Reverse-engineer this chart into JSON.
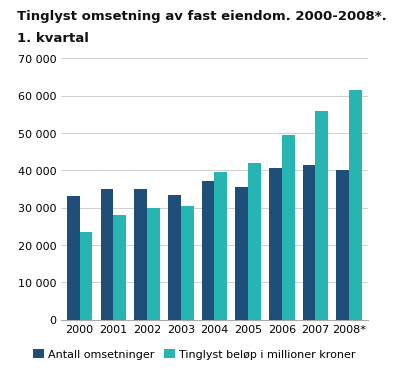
{
  "title_line1": "Tinglyst omsetning av fast eiendom. 2000-2008*.",
  "title_line2": "1. kvartal",
  "years": [
    "2000",
    "2001",
    "2002",
    "2003",
    "2004",
    "2005",
    "2006",
    "2007",
    "2008*"
  ],
  "antall": [
    33000,
    35000,
    35000,
    33500,
    37000,
    35500,
    40500,
    41500,
    40000
  ],
  "tinglyst": [
    23500,
    28000,
    30000,
    30500,
    39500,
    42000,
    49500,
    56000,
    61500
  ],
  "color_antall": "#1f4e79",
  "color_tinglyst": "#26b5b0",
  "ylim": [
    0,
    70000
  ],
  "yticks": [
    0,
    10000,
    20000,
    30000,
    40000,
    50000,
    60000,
    70000
  ],
  "legend_label1": "Antall omsetninger",
  "legend_label2": "Tinglyst beløp i millioner kroner",
  "bg_color": "#ffffff",
  "bar_width": 0.38,
  "title_fontsize": 9.5,
  "tick_fontsize": 8.0,
  "legend_fontsize": 8.0
}
